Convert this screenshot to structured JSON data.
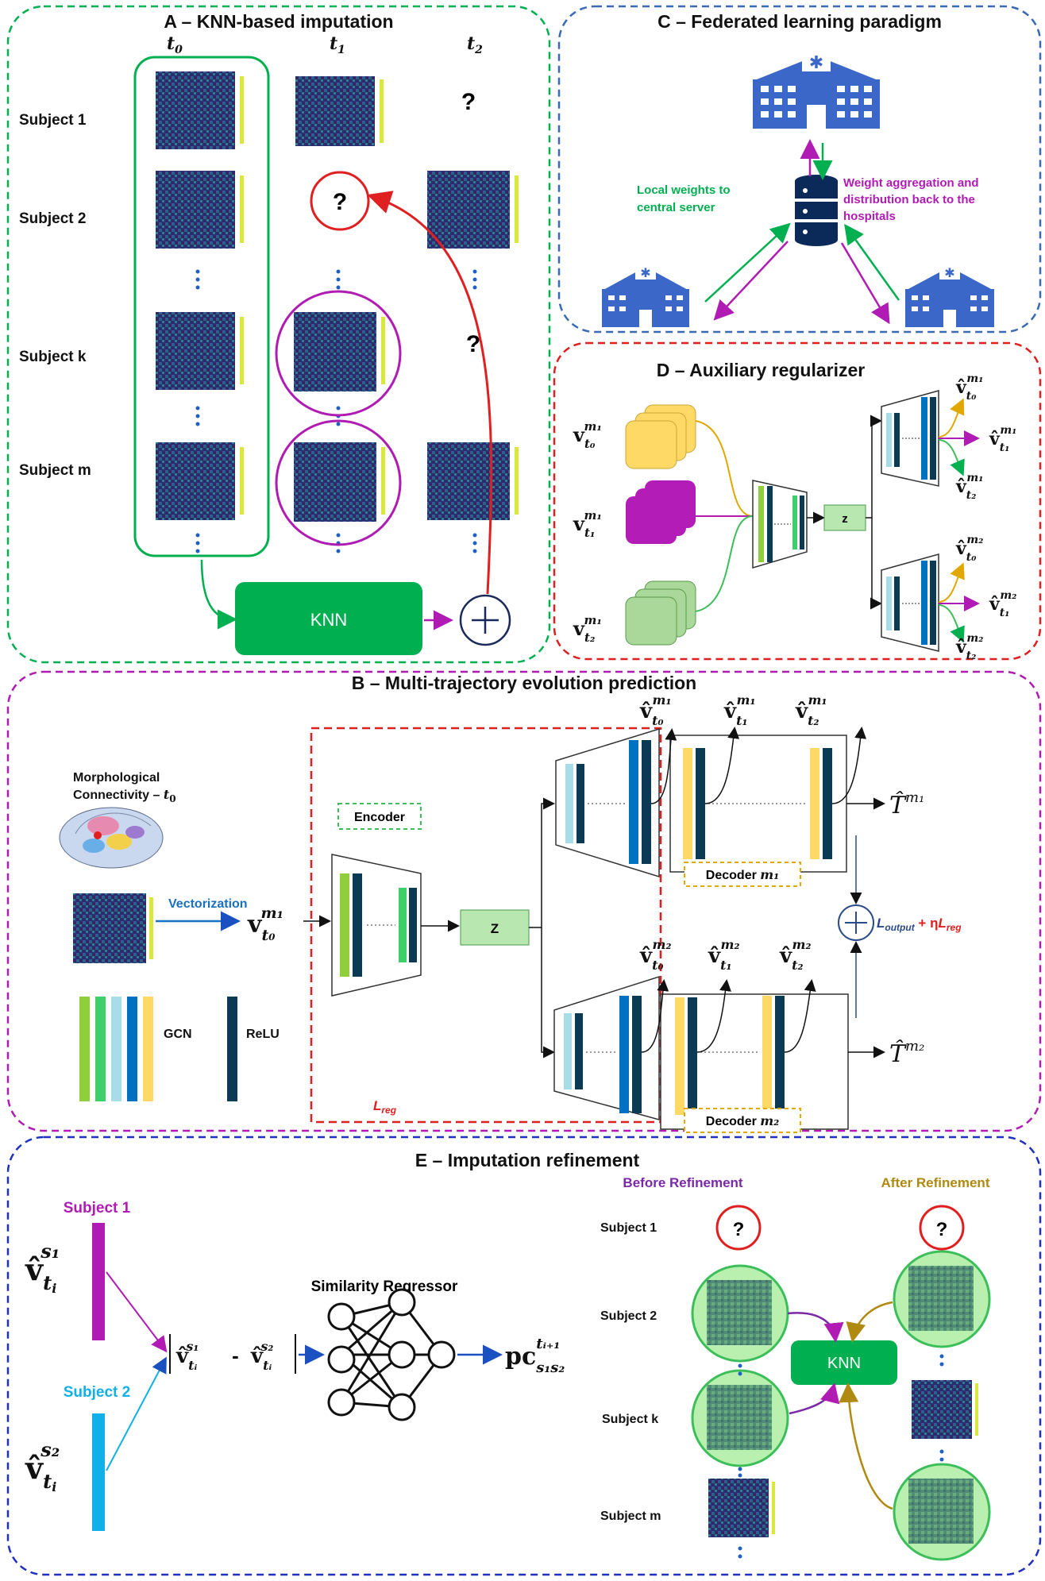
{
  "panels": {
    "A": {
      "title": "A – KNN-based imputation",
      "timepoints": [
        "t",
        "t",
        "t"
      ],
      "timepoint_subs": [
        "0",
        "1",
        "2"
      ],
      "subjects": [
        "Subject 1",
        "Subject 2",
        "Subject k",
        "Subject m"
      ],
      "missing": "?",
      "knn": "KNN"
    },
    "B": {
      "title": "B – Multi-trajectory evolution prediction",
      "morph_line1": "Morphological",
      "morph_line2": "Connectivity – ",
      "morph_t": "t",
      "morph_sub": "0",
      "vectorization": "Vectorization",
      "encoder": "Encoder",
      "z": "Z",
      "decoder1": "Decoder ",
      "decoder1_sub": "m₁",
      "decoder2": "Decoder ",
      "decoder2_sub": "m₂",
      "gcn": "GCN",
      "relu": "ReLU",
      "lreg": "L",
      "lreg_sub": "reg",
      "loss_output": "L",
      "loss_output_sub": "output",
      "plus_eta": " + η",
      "loss_reg": "L",
      "loss_reg_sub": "reg",
      "traj1": "T̂",
      "traj1_sup": "m₁",
      "traj2": "T̂",
      "traj2_sup": "m₂"
    },
    "C": {
      "title": "C – Federated learning paradigm",
      "local_weights": [
        "Local weights to",
        "central server"
      ],
      "aggregation": [
        "Weight aggregation and",
        "distribution back to the",
        "hospitals"
      ]
    },
    "D": {
      "title": "D – Auxiliary regularizer",
      "z": "z"
    },
    "E": {
      "title": "E – Imputation refinement",
      "subject1": "Subject 1",
      "subject2": "Subject 2",
      "similarity": "Similarity Regressor",
      "before": "Before Refinement",
      "after": "After Refinement",
      "subjects": [
        "Subject 1",
        "Subject 2",
        "Subject k",
        "Subject m"
      ],
      "knn": "KNN",
      "missing": "?",
      "diff_minus": "-",
      "pc": "pc"
    }
  },
  "colors": {
    "green": "#00b050",
    "purple": "#b01cb3",
    "red": "#e02020",
    "blue": "#2040c0",
    "yellow": "#ffd966",
    "lightblue": "#a8dde8",
    "darkblue": "#0070c0",
    "navy": "#0b3a55",
    "lime": "#8fcf3c",
    "cyan": "#11b0e8",
    "gold": "#c08a00"
  }
}
